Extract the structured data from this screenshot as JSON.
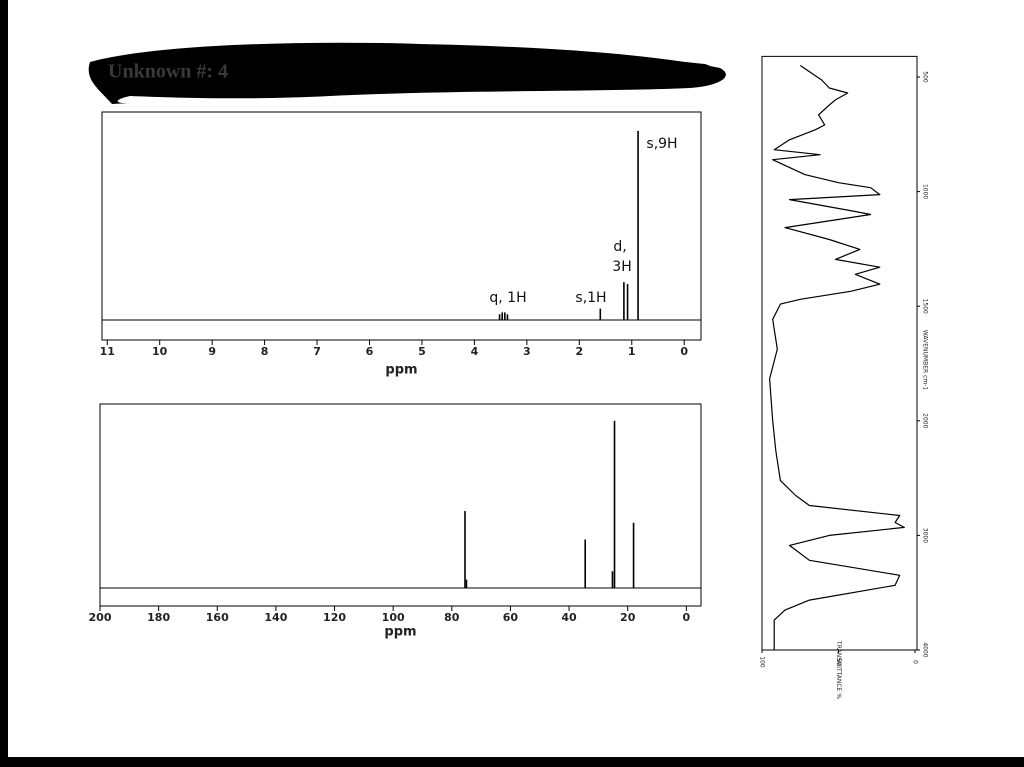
{
  "title": "Unknown #: 4",
  "chart_data": [
    {
      "type": "stem",
      "xlabel": "ppm",
      "x": [
        3.52,
        3.47,
        3.42,
        3.37,
        1.6,
        1.15,
        1.08,
        0.88
      ],
      "values": [
        3,
        4,
        4,
        3,
        6,
        20,
        19,
        100
      ],
      "xlim": [
        11.1,
        -0.32
      ],
      "ylim": [
        0,
        110
      ],
      "xticks": [
        11,
        10,
        9,
        8,
        7,
        6,
        5,
        4,
        3,
        2,
        1,
        0
      ],
      "annotations": [
        "q, 1H",
        "s,1H",
        "d,",
        "3H",
        "s,9H"
      ],
      "color": "#000000"
    },
    {
      "type": "stem",
      "xlabel": "ppm",
      "x": [
        75.5,
        75.0,
        34.5,
        25.2,
        24.5,
        18.0
      ],
      "values": [
        46,
        5,
        29,
        10,
        100,
        39
      ],
      "xlim": [
        200,
        -5
      ],
      "ylim": [
        0,
        110
      ],
      "xticks": [
        200,
        180,
        160,
        140,
        120,
        100,
        80,
        60,
        40,
        20,
        0
      ],
      "color": "#000000"
    },
    {
      "type": "line",
      "orientation": "vertical",
      "xlabel": "WAVENUMBER cm-1",
      "ylabel": "TRANSMITTANCE %",
      "x": [
        450,
        513,
        548,
        570,
        600,
        622,
        665,
        709,
        730,
        774,
        817,
        839,
        861,
        926,
        961,
        983,
        1013,
        1035,
        1087,
        1100,
        1157,
        1209,
        1252,
        1296,
        1330,
        1361,
        1404,
        1435,
        1470,
        1491,
        1557,
        1687,
        1817,
        2000,
        2261,
        2522,
        2652,
        2739,
        2826,
        2887,
        2930,
        3000,
        3087,
        3217,
        3348,
        3435,
        3565,
        3652,
        3739,
        4000
      ],
      "values": [
        75,
        61,
        56,
        44,
        52,
        56,
        63,
        59,
        65,
        82,
        92,
        62,
        93,
        72,
        50,
        29,
        23,
        82,
        39,
        29,
        85,
        56,
        36,
        52,
        23,
        39,
        23,
        42,
        75,
        88,
        93,
        90,
        95,
        93,
        91,
        88,
        78,
        69,
        10,
        13,
        7,
        56,
        82,
        69,
        10,
        13,
        69,
        85,
        92,
        92
      ],
      "xlim": [
        410,
        4000
      ],
      "ylim": [
        100,
        0
      ],
      "xticks": [
        500,
        1000,
        1500,
        2000,
        3000,
        4000
      ],
      "yticks": [
        100,
        50,
        0
      ],
      "color": "#000000"
    }
  ]
}
